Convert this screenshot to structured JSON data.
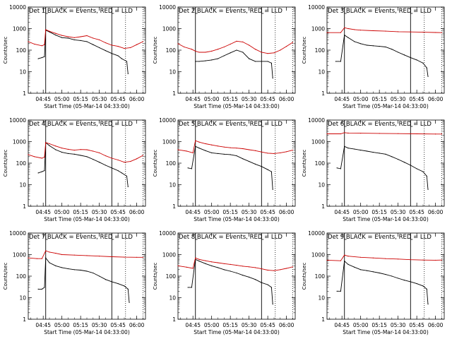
{
  "panel_title_suffix": "BLACK = Events, RED = LLD",
  "xlabel": "Start Time (05-Mar-14 04:33:00)",
  "ylabel": "Counts/sec",
  "colors": {
    "events": "#000000",
    "lld": "#cc0000"
  },
  "chart_data": [
    {
      "type": "line",
      "title": "Det 1",
      "x_ticks": [
        "04:45",
        "05:00",
        "05:15",
        "05:30",
        "05:45",
        "06:00"
      ],
      "y_ticks": [
        "1",
        "10",
        "100",
        "1000",
        "10000"
      ],
      "y_scale": "log",
      "ylim": [
        1,
        10000
      ],
      "series": [
        {
          "name": "Events",
          "color": "black",
          "x": [
            "04:41",
            "04:44",
            "04:46",
            "04:47",
            "04:50",
            "04:55",
            "05:00",
            "05:05",
            "05:10",
            "05:15",
            "05:20",
            "05:25",
            "05:30",
            "05:35",
            "05:40",
            "05:45",
            "05:48",
            "05:52",
            "05:53"
          ],
          "y": [
            40,
            45,
            50,
            850,
            700,
            500,
            380,
            360,
            300,
            280,
            250,
            180,
            130,
            95,
            70,
            55,
            40,
            30,
            8
          ]
        },
        {
          "name": "LLD",
          "color": "red",
          "x": [
            "04:33",
            "04:38",
            "04:44",
            "04:46",
            "04:47",
            "04:50",
            "04:55",
            "05:00",
            "05:05",
            "05:10",
            "05:15",
            "05:20",
            "05:25",
            "05:30",
            "05:35",
            "05:40",
            "05:45",
            "05:50",
            "05:55",
            "06:00",
            "06:05"
          ],
          "y": [
            250,
            190,
            160,
            180,
            900,
            750,
            600,
            480,
            420,
            380,
            420,
            470,
            360,
            300,
            220,
            170,
            150,
            120,
            130,
            180,
            250
          ]
        }
      ]
    },
    {
      "type": "line",
      "title": "Det 2",
      "x_ticks": [
        "04:45",
        "05:00",
        "05:15",
        "05:30",
        "05:45",
        "06:00"
      ],
      "y_ticks": [
        "1",
        "10",
        "100",
        "1000",
        "10000"
      ],
      "y_scale": "log",
      "ylim": [
        1,
        10000
      ],
      "series": [
        {
          "name": "Events",
          "color": "black",
          "x": [
            "04:47",
            "04:50",
            "04:55",
            "05:00",
            "05:05",
            "05:10",
            "05:15",
            "05:20",
            "05:25",
            "05:30",
            "05:35",
            "05:40",
            "05:45",
            "05:48",
            "05:49"
          ],
          "y": [
            30,
            30,
            32,
            35,
            40,
            55,
            75,
            100,
            80,
            40,
            30,
            30,
            30,
            25,
            5
          ]
        },
        {
          "name": "LLD",
          "color": "red",
          "x": [
            "04:33",
            "04:38",
            "04:44",
            "04:47",
            "04:50",
            "04:55",
            "05:00",
            "05:05",
            "05:10",
            "05:15",
            "05:20",
            "05:25",
            "05:30",
            "05:35",
            "05:40",
            "05:45",
            "05:50",
            "05:55",
            "06:00",
            "06:05"
          ],
          "y": [
            200,
            140,
            110,
            90,
            80,
            80,
            90,
            110,
            140,
            190,
            260,
            240,
            170,
            110,
            80,
            70,
            75,
            100,
            150,
            230
          ]
        }
      ]
    },
    {
      "type": "line",
      "title": "Det 3",
      "x_ticks": [
        "04:45",
        "05:00",
        "05:15",
        "05:30",
        "05:45",
        "06:00"
      ],
      "y_ticks": [
        "1",
        "10",
        "100",
        "1000",
        "10000"
      ],
      "y_scale": "log",
      "ylim": [
        1,
        10000
      ],
      "series": [
        {
          "name": "Events",
          "color": "black",
          "x": [
            "04:40",
            "04:44",
            "04:47",
            "04:50",
            "04:55",
            "05:00",
            "05:05",
            "05:10",
            "05:15",
            "05:20",
            "05:25",
            "05:30",
            "05:35",
            "05:40",
            "05:45",
            "05:50",
            "05:53",
            "05:54"
          ],
          "y": [
            30,
            30,
            500,
            380,
            250,
            200,
            170,
            160,
            150,
            140,
            110,
            80,
            60,
            45,
            35,
            25,
            15,
            6
          ]
        },
        {
          "name": "LLD",
          "color": "red",
          "x": [
            "04:33",
            "04:44",
            "04:47",
            "04:50",
            "04:55",
            "05:00",
            "05:10",
            "05:20",
            "05:30",
            "05:40",
            "05:50",
            "06:00",
            "06:05"
          ],
          "y": [
            650,
            650,
            1100,
            1000,
            900,
            850,
            800,
            760,
            720,
            700,
            680,
            660,
            650
          ]
        }
      ]
    },
    {
      "type": "line",
      "title": "Det 4",
      "x_ticks": [
        "04:45",
        "05:00",
        "05:15",
        "05:30",
        "05:45",
        "06:00"
      ],
      "y_ticks": [
        "1",
        "10",
        "100",
        "1000",
        "10000"
      ],
      "y_scale": "log",
      "ylim": [
        1,
        10000
      ],
      "series": [
        {
          "name": "Events",
          "color": "black",
          "x": [
            "04:41",
            "04:44",
            "04:46",
            "04:47",
            "04:50",
            "04:55",
            "05:00",
            "05:05",
            "05:10",
            "05:15",
            "05:20",
            "05:25",
            "05:30",
            "05:35",
            "05:40",
            "05:45",
            "05:48",
            "05:52",
            "05:53"
          ],
          "y": [
            35,
            40,
            45,
            900,
            650,
            420,
            320,
            280,
            260,
            230,
            200,
            150,
            110,
            80,
            60,
            45,
            35,
            25,
            8
          ]
        },
        {
          "name": "LLD",
          "color": "red",
          "x": [
            "04:33",
            "04:38",
            "04:44",
            "04:46",
            "04:47",
            "04:50",
            "04:55",
            "05:00",
            "05:05",
            "05:10",
            "05:15",
            "05:20",
            "05:25",
            "05:30",
            "05:35",
            "05:40",
            "05:45",
            "05:50",
            "05:55",
            "06:00",
            "06:05"
          ],
          "y": [
            250,
            200,
            170,
            190,
            900,
            800,
            620,
            500,
            440,
            400,
            430,
            420,
            360,
            300,
            220,
            170,
            140,
            110,
            120,
            160,
            230
          ]
        }
      ]
    },
    {
      "type": "line",
      "title": "Det 5",
      "x_ticks": [
        "04:45",
        "05:00",
        "05:15",
        "05:30",
        "05:45",
        "06:00"
      ],
      "y_ticks": [
        "1",
        "10",
        "100",
        "1000",
        "10000"
      ],
      "y_scale": "log",
      "ylim": [
        1,
        10000
      ],
      "series": [
        {
          "name": "Events",
          "color": "black",
          "x": [
            "04:41",
            "04:44",
            "04:47",
            "04:50",
            "04:55",
            "05:00",
            "05:05",
            "05:10",
            "05:15",
            "05:20",
            "05:25",
            "05:30",
            "05:35",
            "05:40",
            "05:45",
            "05:48",
            "05:49"
          ],
          "y": [
            60,
            55,
            600,
            500,
            380,
            300,
            280,
            260,
            250,
            220,
            160,
            120,
            90,
            70,
            50,
            40,
            6
          ]
        },
        {
          "name": "LLD",
          "color": "red",
          "x": [
            "04:33",
            "04:40",
            "04:45",
            "04:47",
            "04:50",
            "04:55",
            "05:00",
            "05:05",
            "05:10",
            "05:15",
            "05:20",
            "05:25",
            "05:30",
            "05:35",
            "05:40",
            "05:45",
            "05:50",
            "05:55",
            "06:00",
            "06:05"
          ],
          "y": [
            420,
            360,
            300,
            1100,
            950,
            800,
            700,
            620,
            560,
            520,
            500,
            470,
            420,
            380,
            330,
            290,
            280,
            300,
            340,
            400
          ]
        }
      ]
    },
    {
      "type": "line",
      "title": "Det 6",
      "x_ticks": [
        "04:45",
        "05:00",
        "05:15",
        "05:30",
        "05:45",
        "06:00"
      ],
      "y_ticks": [
        "1",
        "10",
        "100",
        "1000",
        "10000"
      ],
      "y_scale": "log",
      "ylim": [
        1,
        10000
      ],
      "series": [
        {
          "name": "Events",
          "color": "black",
          "x": [
            "04:41",
            "04:44",
            "04:47",
            "04:50",
            "04:55",
            "05:00",
            "05:05",
            "05:10",
            "05:15",
            "05:20",
            "05:25",
            "05:30",
            "05:35",
            "05:40",
            "05:45",
            "05:50",
            "05:53",
            "05:54"
          ],
          "y": [
            60,
            55,
            600,
            500,
            450,
            400,
            360,
            320,
            290,
            260,
            200,
            150,
            110,
            80,
            55,
            40,
            25,
            6
          ]
        },
        {
          "name": "LLD",
          "color": "red",
          "x": [
            "04:33",
            "04:44",
            "04:47",
            "04:50",
            "05:00",
            "05:15",
            "05:30",
            "05:45",
            "06:00",
            "06:05"
          ],
          "y": [
            2300,
            2300,
            2600,
            2500,
            2450,
            2400,
            2350,
            2300,
            2250,
            2250
          ]
        }
      ]
    },
    {
      "type": "line",
      "title": "Det 7",
      "x_ticks": [
        "04:45",
        "05:00",
        "05:15",
        "05:30",
        "05:45",
        "06:00"
      ],
      "y_ticks": [
        "1",
        "10",
        "100",
        "1000",
        "10000"
      ],
      "y_scale": "log",
      "ylim": [
        1,
        10000
      ],
      "series": [
        {
          "name": "Events",
          "color": "black",
          "x": [
            "04:41",
            "04:44",
            "04:46",
            "04:47",
            "04:50",
            "04:55",
            "05:00",
            "05:05",
            "05:10",
            "05:15",
            "05:20",
            "05:25",
            "05:30",
            "05:35",
            "05:40",
            "05:45",
            "05:50",
            "05:53",
            "05:54"
          ],
          "y": [
            25,
            25,
            30,
            700,
            420,
            300,
            250,
            220,
            200,
            190,
            170,
            140,
            100,
            70,
            55,
            45,
            35,
            25,
            6
          ]
        },
        {
          "name": "LLD",
          "color": "red",
          "x": [
            "04:33",
            "04:40",
            "04:44",
            "04:47",
            "04:50",
            "04:55",
            "05:00",
            "05:10",
            "05:20",
            "05:30",
            "05:40",
            "05:50",
            "06:00",
            "06:05"
          ],
          "y": [
            700,
            650,
            650,
            1500,
            1300,
            1150,
            1000,
            950,
            900,
            850,
            800,
            760,
            750,
            750
          ]
        }
      ]
    },
    {
      "type": "line",
      "title": "Det 8",
      "x_ticks": [
        "04:45",
        "05:00",
        "05:15",
        "05:30",
        "05:45",
        "06:00"
      ],
      "y_ticks": [
        "1",
        "10",
        "100",
        "1000",
        "10000"
      ],
      "y_scale": "log",
      "ylim": [
        1,
        10000
      ],
      "series": [
        {
          "name": "Events",
          "color": "black",
          "x": [
            "04:41",
            "04:44",
            "04:47",
            "04:50",
            "04:55",
            "05:00",
            "05:05",
            "05:10",
            "05:15",
            "05:20",
            "05:25",
            "05:30",
            "05:35",
            "05:40",
            "05:45",
            "05:48",
            "05:49"
          ],
          "y": [
            30,
            30,
            600,
            500,
            380,
            300,
            250,
            200,
            170,
            140,
            110,
            90,
            70,
            50,
            40,
            30,
            5
          ]
        },
        {
          "name": "LLD",
          "color": "red",
          "x": [
            "04:33",
            "04:40",
            "04:45",
            "04:47",
            "04:50",
            "04:55",
            "05:00",
            "05:05",
            "05:10",
            "05:15",
            "05:20",
            "05:25",
            "05:30",
            "05:35",
            "05:40",
            "05:45",
            "05:50",
            "05:55",
            "06:00",
            "06:05"
          ],
          "y": [
            300,
            260,
            230,
            700,
            600,
            520,
            460,
            420,
            380,
            350,
            320,
            290,
            270,
            250,
            220,
            190,
            180,
            200,
            230,
            270
          ]
        }
      ]
    },
    {
      "type": "line",
      "title": "Det 9",
      "x_ticks": [
        "04:45",
        "05:00",
        "05:15",
        "05:30",
        "05:45",
        "06:00"
      ],
      "y_ticks": [
        "1",
        "10",
        "100",
        "1000",
        "10000"
      ],
      "y_scale": "log",
      "ylim": [
        1,
        10000
      ],
      "series": [
        {
          "name": "Events",
          "color": "black",
          "x": [
            "04:41",
            "04:44",
            "04:47",
            "04:50",
            "04:55",
            "05:00",
            "05:05",
            "05:10",
            "05:15",
            "05:20",
            "05:25",
            "05:30",
            "05:35",
            "05:40",
            "05:45",
            "05:50",
            "05:53",
            "05:54"
          ],
          "y": [
            20,
            20,
            500,
            350,
            260,
            200,
            180,
            160,
            140,
            120,
            100,
            80,
            65,
            55,
            45,
            35,
            25,
            5
          ]
        },
        {
          "name": "LLD",
          "color": "red",
          "x": [
            "04:33",
            "04:44",
            "04:47",
            "04:50",
            "05:00",
            "05:10",
            "05:20",
            "05:30",
            "05:40",
            "05:50",
            "06:00",
            "06:05"
          ],
          "y": [
            550,
            520,
            950,
            850,
            750,
            700,
            650,
            620,
            580,
            560,
            550,
            560
          ]
        }
      ]
    }
  ]
}
